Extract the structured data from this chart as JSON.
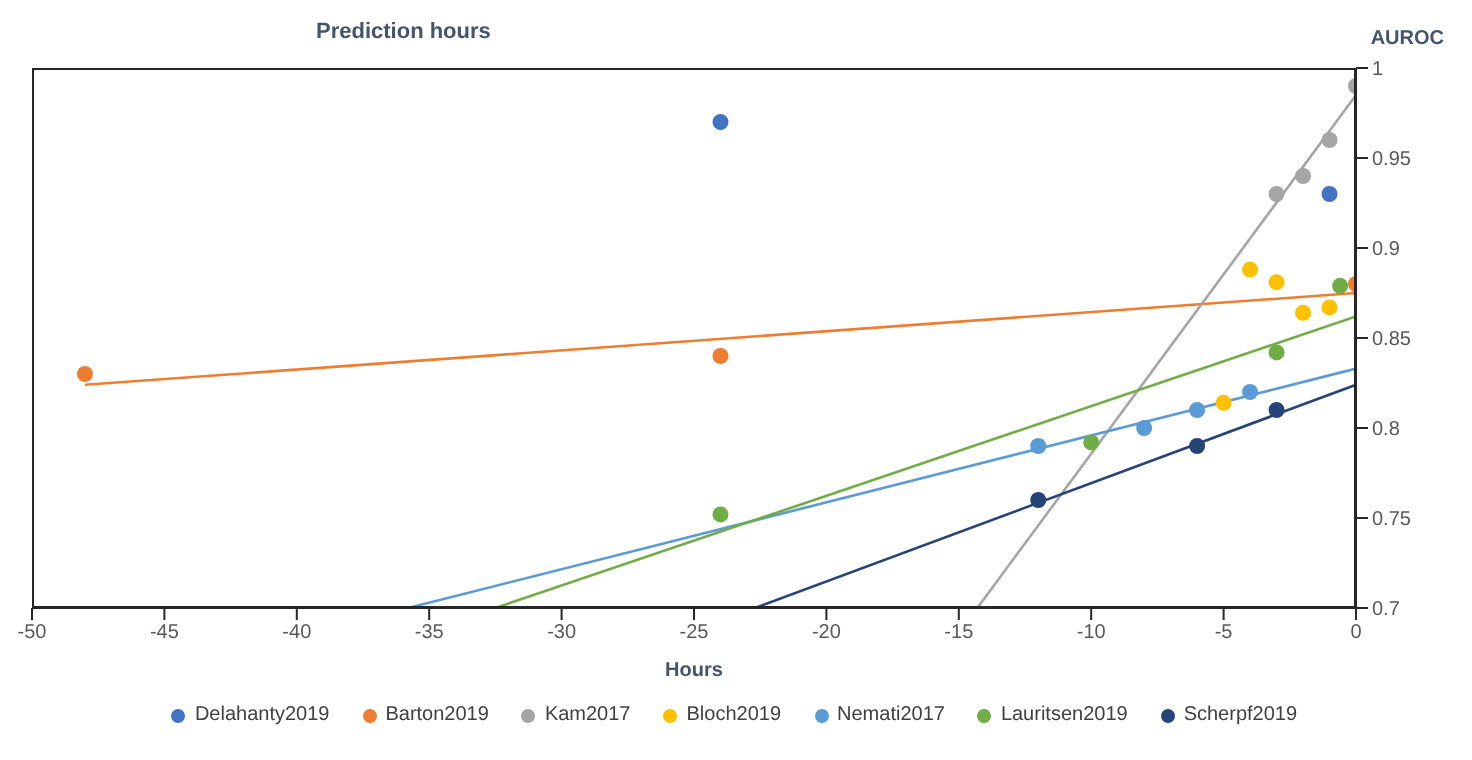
{
  "chart_data": {
    "type": "scatter",
    "title": "Prediction hours",
    "xlabel": "Hours",
    "ylabel": "AUROC",
    "xlim": [
      -50,
      0
    ],
    "xticks": [
      -50,
      -45,
      -40,
      -35,
      -30,
      -25,
      -20,
      -15,
      -10,
      -5,
      0
    ],
    "ylim": [
      0.7,
      1
    ],
    "yticks": [
      0.7,
      0.75,
      0.8,
      0.85,
      0.9,
      0.95,
      1
    ],
    "grid": false,
    "legend": "bottom",
    "marker": "circle",
    "series": [
      {
        "name": "Delahanty2019",
        "color": "#4472c4",
        "x": [
          -24,
          -1
        ],
        "values": [
          0.97,
          0.93
        ]
      },
      {
        "name": "Barton2019",
        "color": "#ed7d31",
        "x": [
          -48,
          -24,
          0
        ],
        "values": [
          0.83,
          0.84,
          0.88
        ]
      },
      {
        "name": "Kam2017",
        "color": "#a5a5a5",
        "x": [
          -3,
          -2,
          -1,
          0
        ],
        "values": [
          0.93,
          0.94,
          0.96,
          0.99
        ]
      },
      {
        "name": "Bloch2019",
        "color": "#ffc000",
        "x": [
          -5,
          -4,
          -3,
          -2,
          -1
        ],
        "values": [
          0.814,
          0.888,
          0.881,
          0.864,
          0.867
        ]
      },
      {
        "name": "Nemati2017",
        "color": "#5b9bd5",
        "x": [
          -12,
          -8,
          -6,
          -4
        ],
        "values": [
          0.79,
          0.8,
          0.81,
          0.82
        ]
      },
      {
        "name": "Lauritsen2019",
        "color": "#70ad47",
        "x": [
          -24,
          -10,
          -3,
          -0.6
        ],
        "values": [
          0.752,
          0.792,
          0.842,
          0.879
        ]
      },
      {
        "name": "Scherpf2019",
        "color": "#264478",
        "x": [
          -12,
          -6,
          -3
        ],
        "values": [
          0.76,
          0.79,
          0.81
        ]
      },
      {
        "type": "line",
        "marker": "none",
        "color": "#ed7d31",
        "x": [
          -48,
          0
        ],
        "values": [
          0.824,
          0.875
        ]
      },
      {
        "type": "line",
        "marker": "none",
        "color": "#a5a5a5",
        "x": [
          -14.3,
          0
        ],
        "values": [
          0.7,
          0.985
        ]
      },
      {
        "type": "line",
        "marker": "none",
        "color": "#5b9bd5",
        "x": [
          -35.8,
          0
        ],
        "values": [
          0.7,
          0.833
        ]
      },
      {
        "type": "line",
        "marker": "none",
        "color": "#70ad47",
        "x": [
          -32.5,
          0
        ],
        "values": [
          0.7,
          0.862
        ]
      },
      {
        "type": "line",
        "marker": "none",
        "color": "#264478",
        "x": [
          -22.7,
          0
        ],
        "values": [
          0.7,
          0.824
        ]
      }
    ]
  }
}
